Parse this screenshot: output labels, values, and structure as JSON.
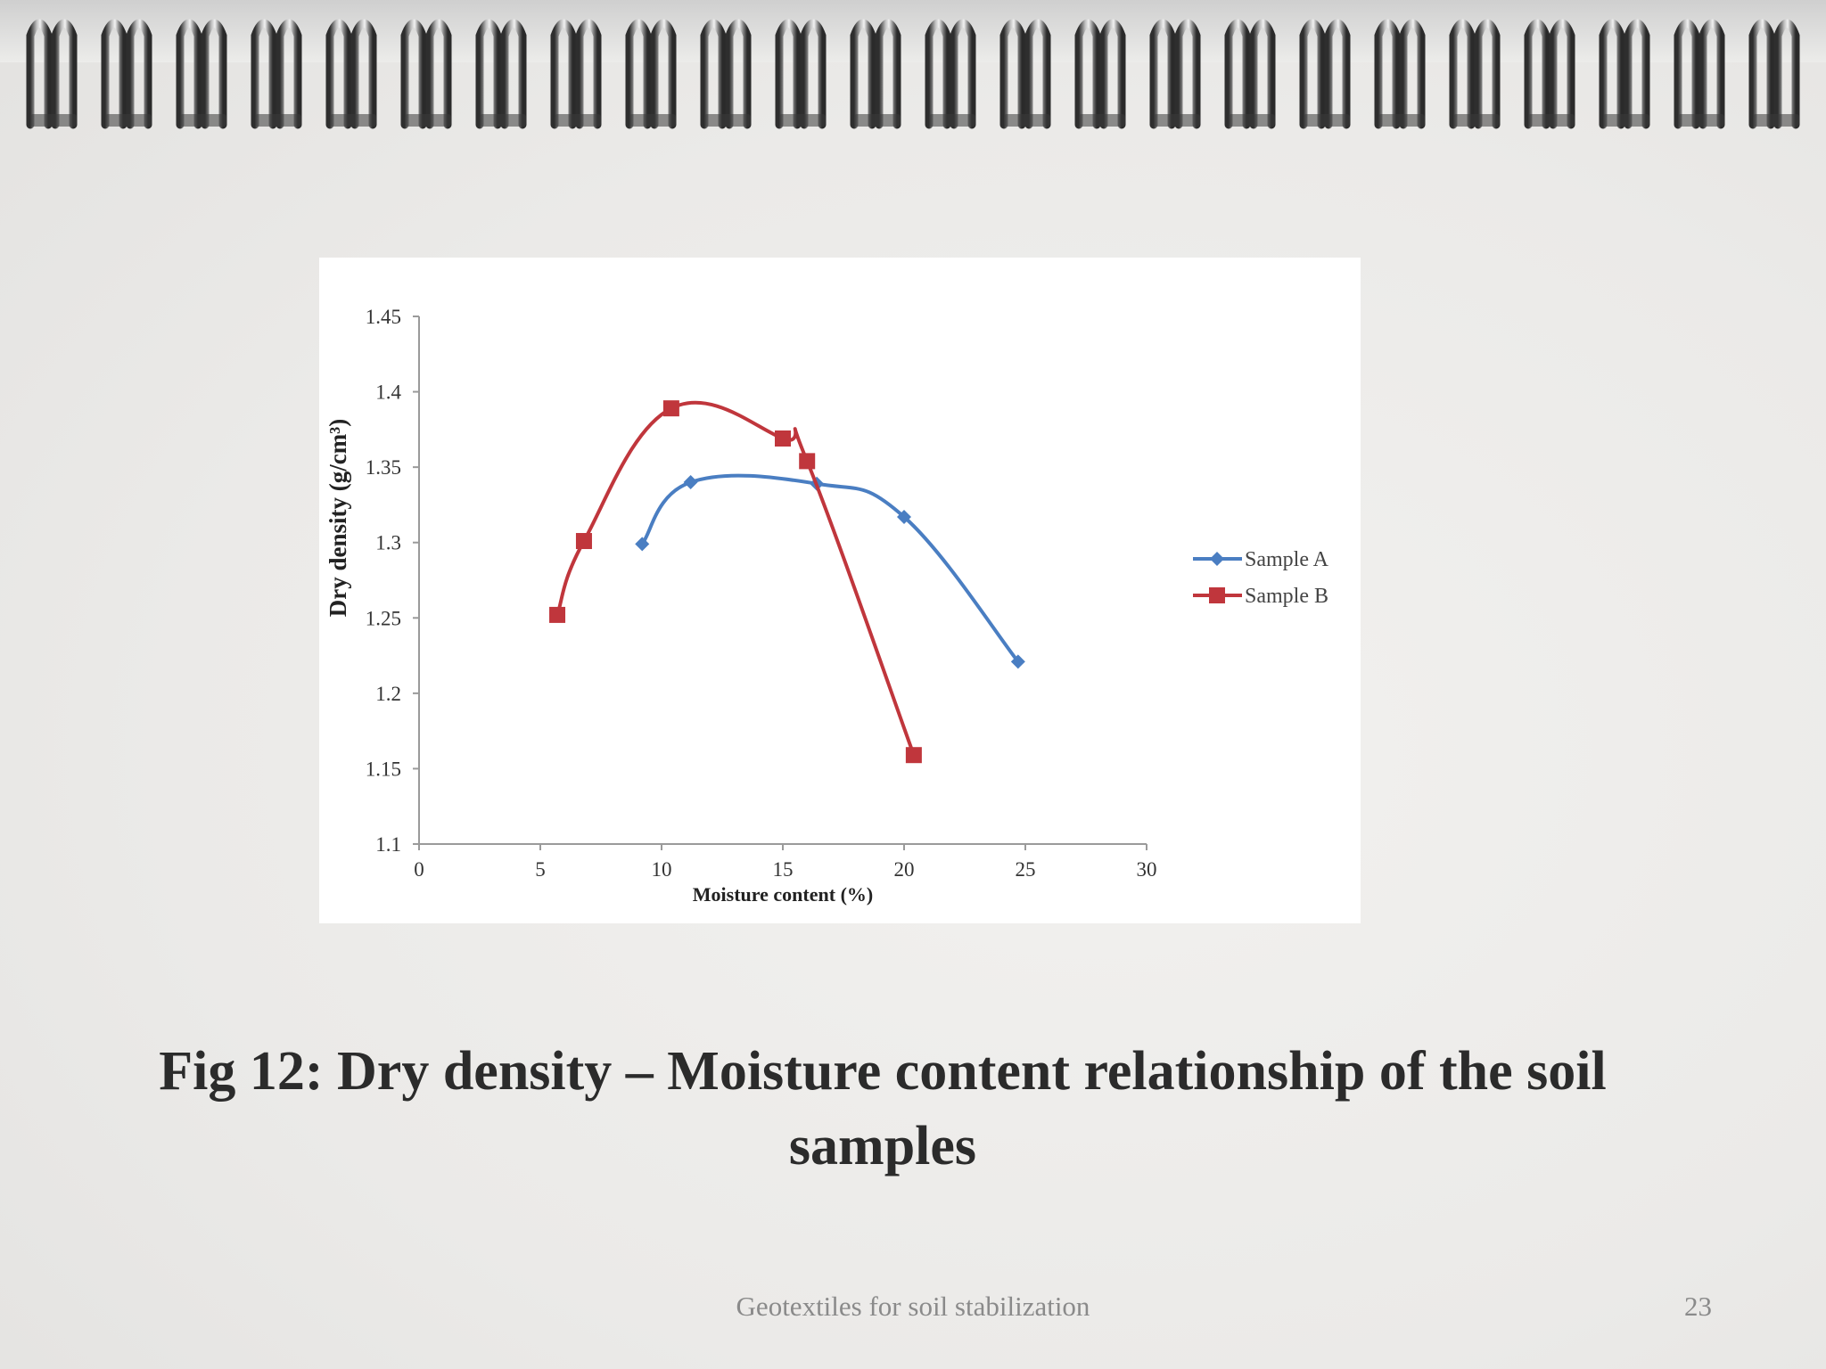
{
  "slide": {
    "caption": "Fig 12: Dry density – Moisture content relationship of the soil samples",
    "footer": "Geotextiles for soil stabilization",
    "page_number": "23"
  },
  "colors": {
    "sample_a": "#4a7ec2",
    "sample_b": "#c0363c",
    "axis": "#9a9a9a",
    "text": "#333333"
  },
  "chart_data": {
    "type": "line",
    "title": "",
    "xlabel": "Moisture content (%)",
    "ylabel": "Dry density (g/cm³)",
    "xlim": [
      0,
      30
    ],
    "ylim": [
      1.1,
      1.45
    ],
    "x_ticks": [
      "0",
      "5",
      "10",
      "15",
      "20",
      "25",
      "30"
    ],
    "y_ticks": [
      "1.1",
      "1.15",
      "1.2",
      "1.25",
      "1.3",
      "1.35",
      "1.4",
      "1.45"
    ],
    "grid": false,
    "legend_position": "right",
    "series": [
      {
        "name": "Sample A",
        "marker": "diamond",
        "color": "#4a7ec2",
        "points": [
          [
            9.2,
            1.299
          ],
          [
            11.2,
            1.34
          ],
          [
            16.4,
            1.339
          ],
          [
            20.0,
            1.317
          ],
          [
            24.7,
            1.221
          ]
        ]
      },
      {
        "name": "Sample B",
        "marker": "square",
        "color": "#c0363c",
        "points": [
          [
            5.7,
            1.252
          ],
          [
            6.8,
            1.301
          ],
          [
            10.4,
            1.389
          ],
          [
            15.0,
            1.369
          ],
          [
            16.0,
            1.354
          ],
          [
            20.4,
            1.159
          ]
        ]
      }
    ]
  }
}
